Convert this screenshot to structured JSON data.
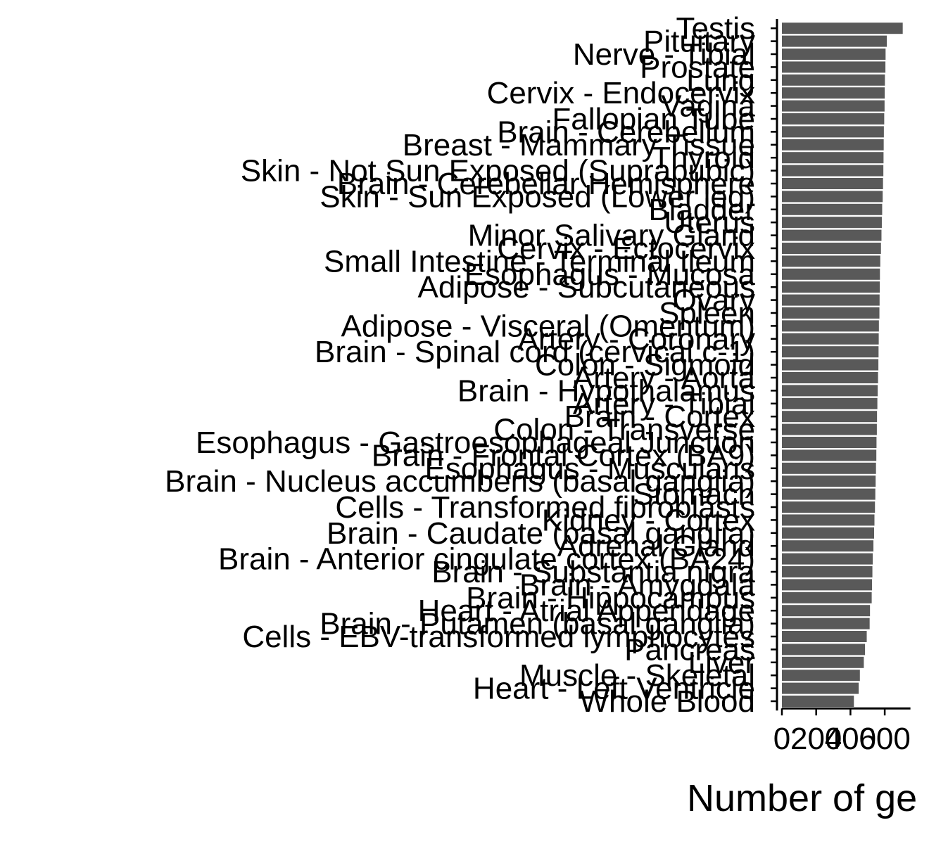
{
  "chart_data": {
    "type": "bar",
    "orientation": "horizontal",
    "xlabel": "Number of ge",
    "xlim": [
      0,
      750
    ],
    "xticks": [
      0,
      200,
      400,
      600
    ],
    "xtick_labels": [
      "0",
      "200",
      "400",
      "600"
    ],
    "grid": false,
    "bar_color": "#595959",
    "categories": [
      "Testis",
      "Pituitary",
      "Nerve - Tibial",
      "Prostate",
      "Lung",
      "Cervix - Endocervix",
      "Vagina",
      "Fallopian Tube",
      "Brain - Cerebellum",
      "Breast - Mammary Tissue",
      "Thyroid",
      "Skin - Not Sun Exposed (Suprapubic)",
      "Brain - Cerebellar Hemisphere",
      "Skin - Sun Exposed (Lower leg)",
      "Bladder",
      "Uterus",
      "Minor Salivary Gland",
      "Cervix - Ectocervix",
      "Small Intestine - Terminal Ileum",
      "Esophagus - Mucosa",
      "Adipose - Subcutaneous",
      "Ovary",
      "Spleen",
      "Adipose - Visceral (Omentum)",
      "Artery - Coronary",
      "Brain - Spinal cord (cervical c-1)",
      "Colon - Sigmoid",
      "Artery - Aorta",
      "Brain - Hypothalamus",
      "Artery - Tibial",
      "Brain - Cortex",
      "Colon - Transverse",
      "Esophagus - Gastroesophageal Junction",
      "Brain - Frontal Cortex (BA9)",
      "Esophagus - Muscularis",
      "Brain - Nucleus accumbens (basal ganglia)",
      "Stomach",
      "Cells - Transformed fibroblasts",
      "Kidney - Cortex",
      "Brain - Caudate (basal ganglia)",
      "Adrenal Gland",
      "Brain - Anterior cingulate cortex (BA24)",
      "Brain - Substantia nigra",
      "Brain - Amygdala",
      "Brain - Hippocampus",
      "Heart - Atrial Appendage",
      "Brain - Putamen (basal ganglia)",
      "Cells - EBV-transformed lymphocytes",
      "Pancreas",
      "Liver",
      "Muscle - Skeletal",
      "Heart - Left Ventricle",
      "Whole Blood"
    ],
    "values": [
      705,
      612,
      605,
      604,
      601,
      600,
      599,
      597,
      595,
      594,
      593,
      592,
      590,
      588,
      585,
      583,
      581,
      578,
      574,
      572,
      571,
      570,
      569,
      566,
      565,
      564,
      563,
      561,
      559,
      557,
      555,
      554,
      552,
      551,
      549,
      547,
      545,
      543,
      540,
      538,
      534,
      530,
      528,
      526,
      524,
      514,
      512,
      495,
      485,
      478,
      455,
      448,
      420
    ]
  }
}
